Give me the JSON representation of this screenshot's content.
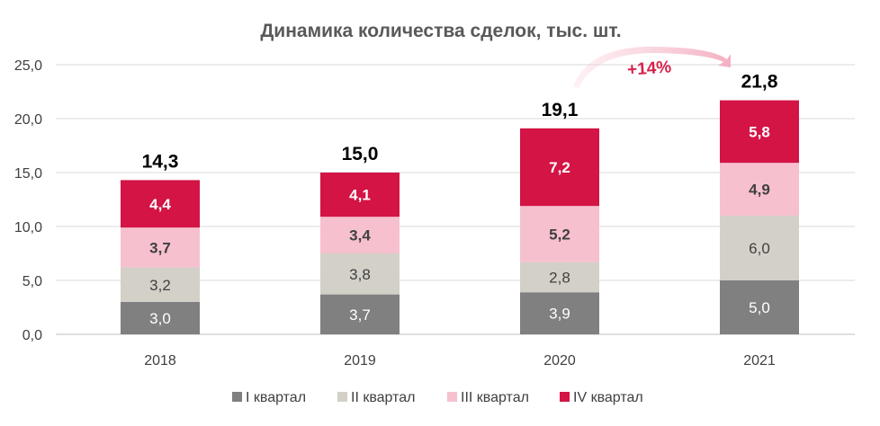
{
  "chart_data": {
    "type": "bar",
    "stacked": true,
    "title": "Динамика количества сделок, тыс. шт.",
    "categories": [
      "2018",
      "2019",
      "2020",
      "2021"
    ],
    "ylim": [
      0,
      25
    ],
    "yticks": [
      "0,0",
      "5,0",
      "10,0",
      "15,0",
      "20,0",
      "25,0"
    ],
    "grid": true,
    "legend_position": "bottom",
    "series": [
      {
        "name": "I квартал",
        "color": "#808080",
        "label_color": "#ffffff",
        "label_bold": false,
        "values": [
          3.0,
          3.7,
          3.9,
          5.0
        ],
        "labels": [
          "3,0",
          "3,7",
          "3,9",
          "5,0"
        ]
      },
      {
        "name": "II квартал",
        "color": "#d3d0c8",
        "label_color": "#404040",
        "label_bold": false,
        "values": [
          3.2,
          3.8,
          2.8,
          6.0
        ],
        "labels": [
          "3,2",
          "3,8",
          "2,8",
          "6,0"
        ]
      },
      {
        "name": "III квартал",
        "color": "#f7c0cf",
        "label_color": "#404040",
        "label_bold": true,
        "values": [
          3.7,
          3.4,
          5.2,
          4.9
        ],
        "labels": [
          "3,7",
          "3,4",
          "5,2",
          "4,9"
        ]
      },
      {
        "name": "IV квартал",
        "color": "#d31445",
        "label_color": "#ffffff",
        "label_bold": true,
        "values": [
          4.4,
          4.1,
          7.2,
          5.8
        ],
        "labels": [
          "4,4",
          "4,1",
          "7,2",
          "5,8"
        ]
      }
    ],
    "totals": [
      "14,3",
      "15,0",
      "19,1",
      "21,8"
    ],
    "annotation": {
      "text": "+14%",
      "from": "2020",
      "to": "2021"
    }
  }
}
